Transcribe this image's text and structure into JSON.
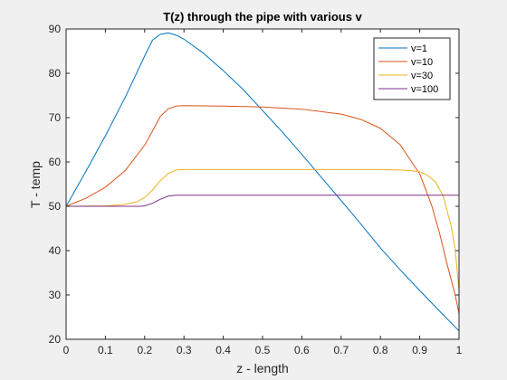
{
  "chart_data": {
    "type": "line",
    "title": "T(z) through the pipe with various v",
    "xlabel": "z - length",
    "ylabel": "T - temp",
    "xlim": [
      0,
      1
    ],
    "ylim": [
      20,
      90
    ],
    "xticks": [
      "0",
      "0.1",
      "0.2",
      "0.3",
      "0.4",
      "0.5",
      "0.6",
      "0.7",
      "0.8",
      "0.9",
      "1"
    ],
    "yticks": [
      "20",
      "30",
      "40",
      "50",
      "60",
      "70",
      "80",
      "90"
    ],
    "grid": false,
    "legend_position": "top-right",
    "series": [
      {
        "name": "v=1",
        "color": "#0072BD",
        "x": [
          0,
          0.05,
          0.1,
          0.15,
          0.2,
          0.22,
          0.24,
          0.26,
          0.28,
          0.3,
          0.35,
          0.4,
          0.45,
          0.5,
          0.55,
          0.6,
          0.65,
          0.7,
          0.75,
          0.8,
          0.85,
          0.9,
          0.95,
          1.0
        ],
        "values": [
          50,
          57.8,
          65.9,
          74.5,
          83.9,
          87.5,
          88.8,
          89.1,
          88.6,
          87.7,
          84.5,
          80.6,
          76.4,
          71.6,
          66.8,
          61.7,
          56.5,
          51.3,
          46.0,
          40.6,
          35.7,
          31.0,
          26.4,
          21.9
        ]
      },
      {
        "name": "v=10",
        "color": "#D95319",
        "x": [
          0,
          0.05,
          0.1,
          0.15,
          0.2,
          0.22,
          0.24,
          0.26,
          0.28,
          0.3,
          0.4,
          0.5,
          0.6,
          0.7,
          0.75,
          0.8,
          0.85,
          0.9,
          0.93,
          0.95,
          0.97,
          0.99,
          1.0
        ],
        "values": [
          50,
          51.8,
          54.3,
          58.0,
          63.8,
          67.0,
          70.3,
          72.0,
          72.6,
          72.7,
          72.6,
          72.4,
          71.9,
          70.8,
          69.6,
          67.6,
          63.9,
          57.3,
          50.3,
          44.1,
          36.8,
          30.1,
          25.8
        ]
      },
      {
        "name": "v=30",
        "color": "#EDB120",
        "x": [
          0,
          0.1,
          0.15,
          0.18,
          0.2,
          0.22,
          0.24,
          0.26,
          0.28,
          0.3,
          0.4,
          0.5,
          0.6,
          0.7,
          0.8,
          0.85,
          0.88,
          0.9,
          0.92,
          0.94,
          0.96,
          0.98,
          0.99,
          1.0
        ],
        "values": [
          50,
          50.1,
          50.4,
          51.0,
          52.0,
          53.7,
          55.8,
          57.4,
          58.2,
          58.3,
          58.3,
          58.3,
          58.3,
          58.3,
          58.3,
          58.2,
          58.0,
          57.8,
          57.0,
          55.5,
          52.3,
          45.5,
          40.5,
          31.0
        ]
      },
      {
        "name": "v=100",
        "color": "#7E2F8E",
        "x": [
          0,
          0.1,
          0.19,
          0.2,
          0.22,
          0.24,
          0.26,
          0.28,
          0.3,
          0.4,
          0.5,
          0.6,
          0.7,
          0.8,
          0.9,
          1.0
        ],
        "values": [
          50,
          50,
          50,
          50.1,
          50.7,
          51.6,
          52.3,
          52.5,
          52.5,
          52.5,
          52.5,
          52.5,
          52.5,
          52.5,
          52.5,
          52.5
        ]
      }
    ]
  }
}
